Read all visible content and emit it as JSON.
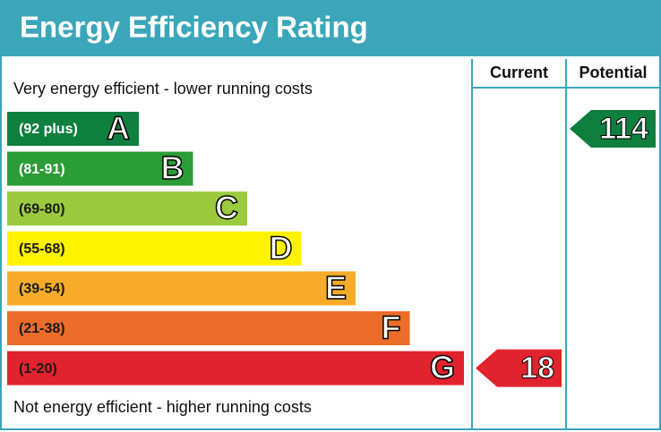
{
  "chart_data": {
    "type": "epc",
    "title": "Energy Efficiency Rating",
    "columns": [
      "Current",
      "Potential"
    ],
    "top_label": "Very energy efficient - lower running costs",
    "bottom_label": "Not energy efficient - higher running costs",
    "bands": [
      {
        "range": "(92 plus)",
        "letter": "A",
        "color": "#0f7f3f",
        "text_color": "#ffffff"
      },
      {
        "range": "(81-91)",
        "letter": "B",
        "color": "#2c9c38",
        "text_color": "#ffffff"
      },
      {
        "range": "(69-80)",
        "letter": "C",
        "color": "#9bca3e",
        "text_color": "#1a1a1a"
      },
      {
        "range": "(55-68)",
        "letter": "D",
        "color": "#fff200",
        "text_color": "#1a1a1a"
      },
      {
        "range": "(39-54)",
        "letter": "E",
        "color": "#f6ac2a",
        "text_color": "#1a1a1a"
      },
      {
        "range": "(21-38)",
        "letter": "F",
        "color": "#ec6c2a",
        "text_color": "#1a1a1a"
      },
      {
        "range": "(1-20)",
        "letter": "G",
        "color": "#e1232e",
        "text_color": "#1a1a1a"
      }
    ],
    "ratings": [
      {
        "column": "Current",
        "value": 18
      },
      {
        "column": "Potential",
        "value": 114
      }
    ]
  }
}
